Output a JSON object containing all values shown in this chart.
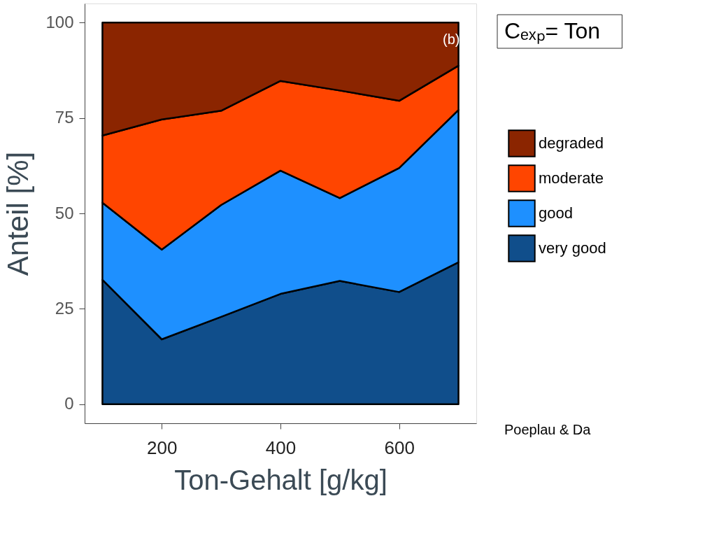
{
  "chart_data": {
    "type": "area",
    "stacked": true,
    "xlabel": "Ton-Gehalt [g/kg]",
    "ylabel": "Anteil [%]",
    "x": [
      100,
      200,
      300,
      400,
      500,
      600,
      700
    ],
    "xlim": [
      70,
      730
    ],
    "xticks": [
      200,
      400,
      600
    ],
    "ylim": [
      -5,
      105
    ],
    "yticks": [
      0,
      25,
      50,
      75,
      100
    ],
    "grid": false,
    "legend": "right",
    "series": [
      {
        "name": "very good",
        "color": "#104e8b",
        "values": [
          32.6,
          17.0,
          22.9,
          28.9,
          32.3,
          29.4,
          37.2
        ]
      },
      {
        "name": "good",
        "color": "#1e90ff",
        "values": [
          20.2,
          23.5,
          29.3,
          32.3,
          21.7,
          32.5,
          39.9
        ]
      },
      {
        "name": "moderate",
        "color": "#ff4500",
        "values": [
          17.6,
          34.1,
          24.7,
          23.5,
          28.2,
          17.6,
          11.6
        ]
      },
      {
        "name": "degraded",
        "color": "#8b2500",
        "values": [
          29.6,
          25.4,
          23.1,
          15.3,
          17.8,
          20.5,
          11.3
        ]
      }
    ],
    "annotations": [
      "(b)",
      "Cₑₓₚ= Ton",
      "Poeplau & Da"
    ]
  }
}
